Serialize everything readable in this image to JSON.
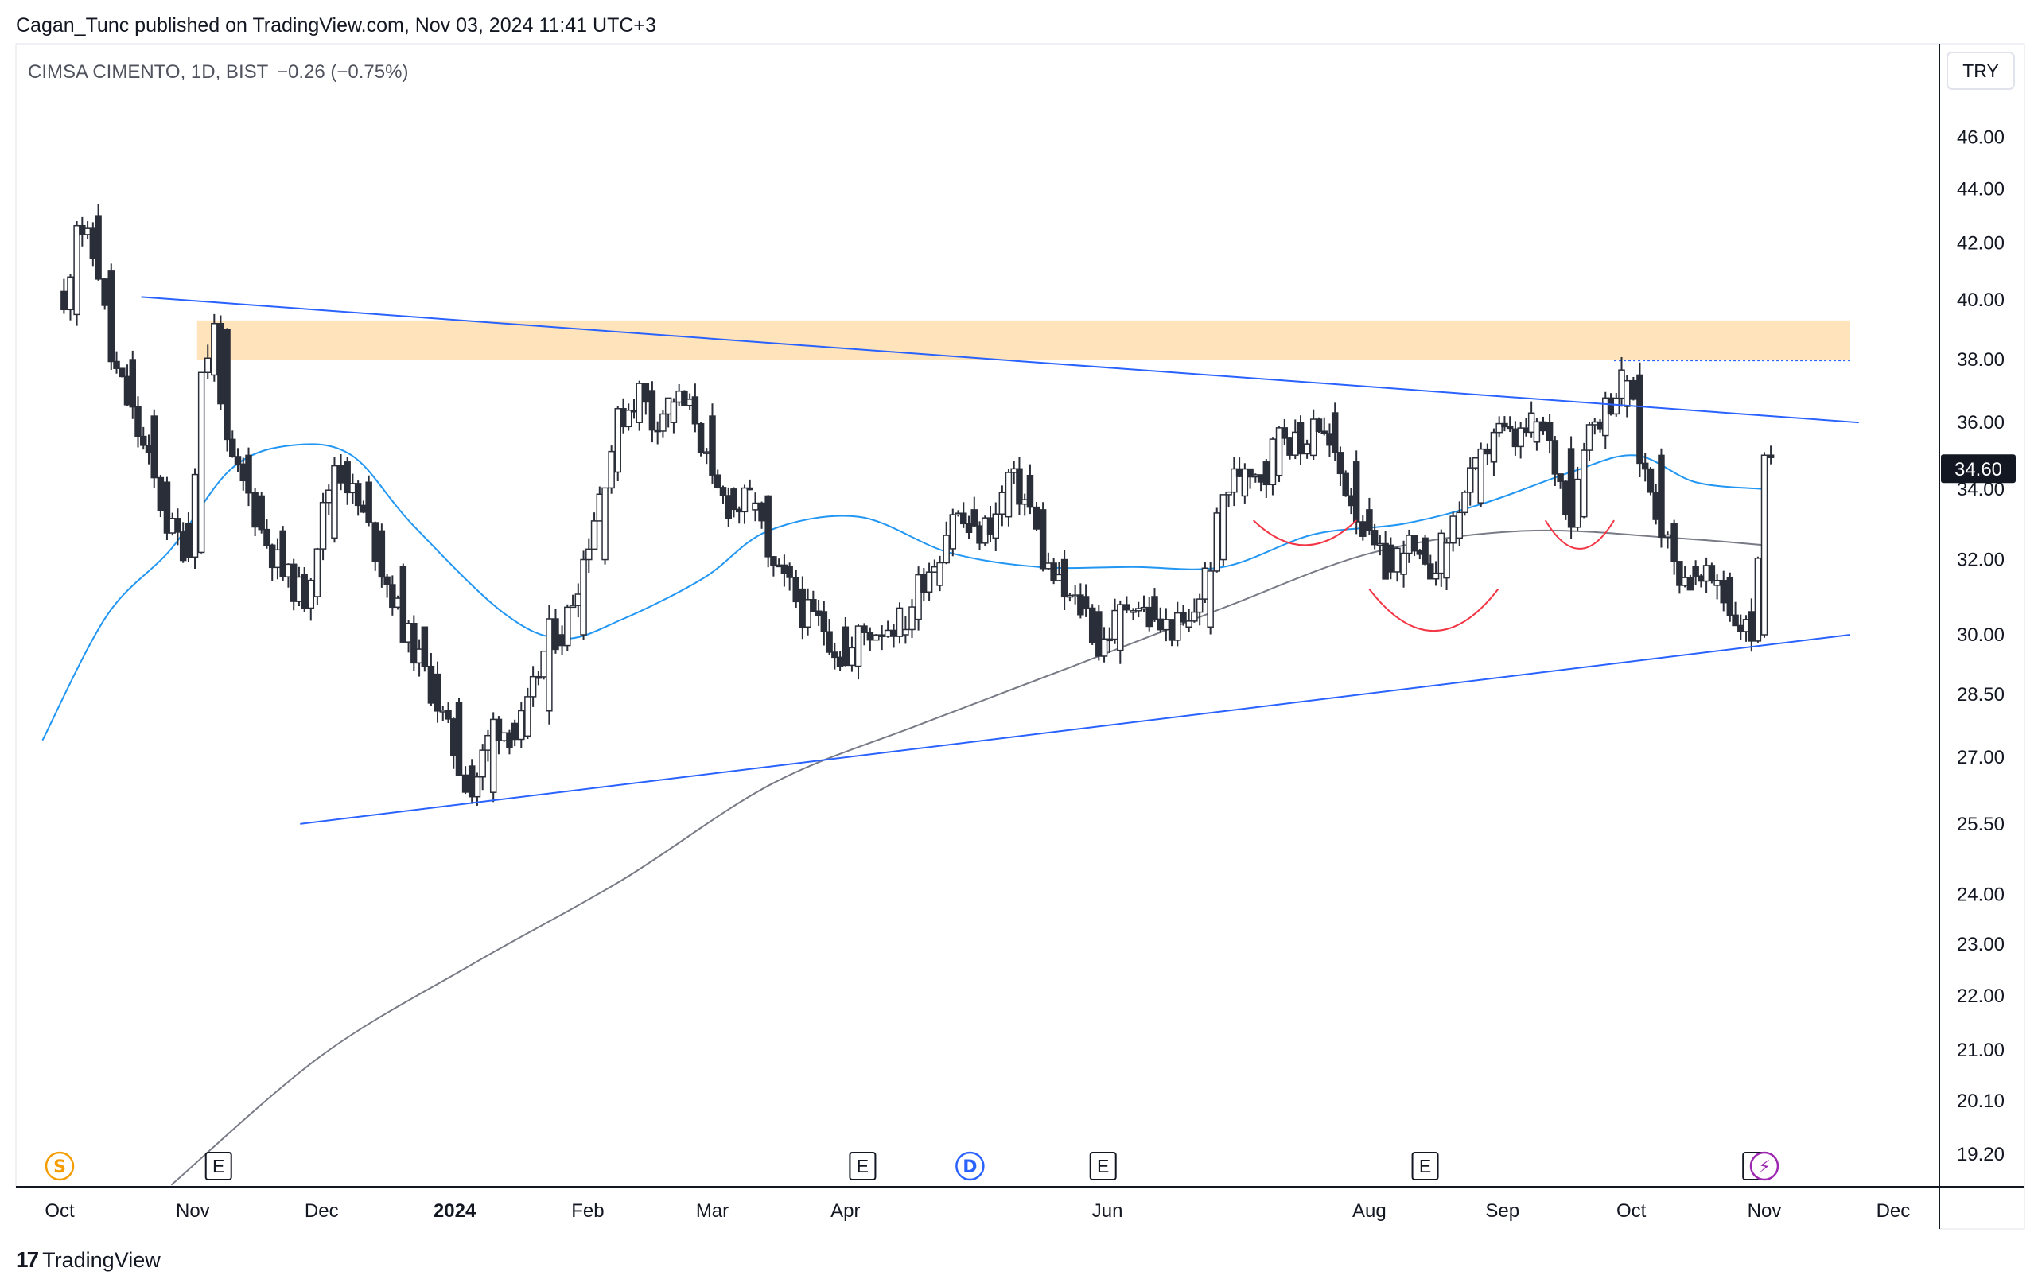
{
  "header": {
    "published": "Cagan_Tunc published on TradingView.com, Nov 03, 2024 11:41 UTC+3",
    "symbol_line": "CIMSA CIMENTO, 1D, BIST",
    "change": "−0.26 (−0.75%)"
  },
  "currency_button": "TRY",
  "last_price_label": "34.60",
  "brand": "TradingView",
  "colors": {
    "candle": "#2a2e39",
    "trendline": "#2962ff",
    "ma_fast": "#2196f3",
    "ma_slow": "#787b86",
    "resistance_zone": "#ffe0b2",
    "arc": "#f23645",
    "event_e": "#131722",
    "event_s": "#f59d00",
    "event_d": "#2962ff",
    "event_flash": "#9c27b0"
  },
  "chart_data": {
    "type": "candlestick",
    "title": "CIMSA CIMENTO, 1D, BIST",
    "scale": "log",
    "ylim": [
      18.7,
      50
    ],
    "y_ticks": [
      "46.00",
      "44.00",
      "42.00",
      "40.00",
      "38.00",
      "36.00",
      "34.00",
      "32.00",
      "30.00",
      "28.50",
      "27.00",
      "25.50",
      "24.00",
      "23.00",
      "22.00",
      "21.00",
      "20.10",
      "19.20"
    ],
    "x_ticks": [
      "Oct",
      "Nov",
      "Dec",
      "2024",
      "Feb",
      "Mar",
      "Apr",
      "Jun",
      "Aug",
      "Sep",
      "Oct",
      "Nov",
      "Dec"
    ],
    "close_series": [
      {
        "date": "2023-10-02",
        "close": 39.5
      },
      {
        "date": "2023-10-05",
        "close": 43.0
      },
      {
        "date": "2023-10-10",
        "close": 41.0
      },
      {
        "date": "2023-10-13",
        "close": 38.0
      },
      {
        "date": "2023-10-18",
        "close": 36.2
      },
      {
        "date": "2023-10-23",
        "close": 34.2
      },
      {
        "date": "2023-10-26",
        "close": 33.0
      },
      {
        "date": "2023-10-31",
        "close": 32.2
      },
      {
        "date": "2023-11-03",
        "close": 37.5
      },
      {
        "date": "2023-11-06",
        "close": 39.0
      },
      {
        "date": "2023-11-09",
        "close": 35.0
      },
      {
        "date": "2023-11-14",
        "close": 33.8
      },
      {
        "date": "2023-11-17",
        "close": 32.8
      },
      {
        "date": "2023-11-22",
        "close": 31.6
      },
      {
        "date": "2023-11-27",
        "close": 31.0
      },
      {
        "date": "2023-11-30",
        "close": 32.6
      },
      {
        "date": "2023-12-04",
        "close": 34.8
      },
      {
        "date": "2023-12-07",
        "close": 34.2
      },
      {
        "date": "2023-12-12",
        "close": 32.8
      },
      {
        "date": "2023-12-15",
        "close": 31.8
      },
      {
        "date": "2023-12-20",
        "close": 30.2
      },
      {
        "date": "2023-12-25",
        "close": 29.0
      },
      {
        "date": "2023-12-28",
        "close": 28.3
      },
      {
        "date": "2024-01-02",
        "close": 26.8
      },
      {
        "date": "2024-01-05",
        "close": 26.2
      },
      {
        "date": "2024-01-10",
        "close": 27.8
      },
      {
        "date": "2024-01-15",
        "close": 27.5
      },
      {
        "date": "2024-01-18",
        "close": 28.1
      },
      {
        "date": "2024-01-23",
        "close": 30.0
      },
      {
        "date": "2024-01-26",
        "close": 30.0
      },
      {
        "date": "2024-01-31",
        "close": 32.0
      },
      {
        "date": "2024-02-05",
        "close": 34.5
      },
      {
        "date": "2024-02-08",
        "close": 36.0
      },
      {
        "date": "2024-02-13",
        "close": 37.0
      },
      {
        "date": "2024-02-16",
        "close": 36.0
      },
      {
        "date": "2024-02-21",
        "close": 36.8
      },
      {
        "date": "2024-02-26",
        "close": 36.2
      },
      {
        "date": "2024-03-01",
        "close": 34.0
      },
      {
        "date": "2024-03-06",
        "close": 33.4
      },
      {
        "date": "2024-03-11",
        "close": 33.8
      },
      {
        "date": "2024-03-14",
        "close": 31.8
      },
      {
        "date": "2024-03-19",
        "close": 31.2
      },
      {
        "date": "2024-03-22",
        "close": 30.6
      },
      {
        "date": "2024-03-27",
        "close": 30.2
      },
      {
        "date": "2024-04-01",
        "close": 29.2
      },
      {
        "date": "2024-04-04",
        "close": 30.0
      },
      {
        "date": "2024-04-15",
        "close": 30.4
      },
      {
        "date": "2024-04-18",
        "close": 31.3
      },
      {
        "date": "2024-04-23",
        "close": 32.3
      },
      {
        "date": "2024-04-26",
        "close": 33.4
      },
      {
        "date": "2024-05-01",
        "close": 32.6
      },
      {
        "date": "2024-05-06",
        "close": 33.2
      },
      {
        "date": "2024-05-09",
        "close": 34.4
      },
      {
        "date": "2024-05-14",
        "close": 33.4
      },
      {
        "date": "2024-05-17",
        "close": 32.0
      },
      {
        "date": "2024-05-22",
        "close": 31.0
      },
      {
        "date": "2024-05-27",
        "close": 30.6
      },
      {
        "date": "2024-05-30",
        "close": 29.6
      },
      {
        "date": "2024-06-04",
        "close": 30.6
      },
      {
        "date": "2024-06-07",
        "close": 31.0
      },
      {
        "date": "2024-06-12",
        "close": 30.2
      },
      {
        "date": "2024-06-20",
        "close": 30.2
      },
      {
        "date": "2024-06-25",
        "close": 32.0
      },
      {
        "date": "2024-06-28",
        "close": 33.8
      },
      {
        "date": "2024-07-03",
        "close": 34.8
      },
      {
        "date": "2024-07-08",
        "close": 34.4
      },
      {
        "date": "2024-07-11",
        "close": 36.0
      },
      {
        "date": "2024-07-16",
        "close": 35.0
      },
      {
        "date": "2024-07-19",
        "close": 36.3
      },
      {
        "date": "2024-07-24",
        "close": 34.8
      },
      {
        "date": "2024-07-29",
        "close": 33.4
      },
      {
        "date": "2024-08-01",
        "close": 32.4
      },
      {
        "date": "2024-08-06",
        "close": 31.6
      },
      {
        "date": "2024-08-09",
        "close": 32.6
      },
      {
        "date": "2024-08-14",
        "close": 31.5
      },
      {
        "date": "2024-08-19",
        "close": 32.6
      },
      {
        "date": "2024-08-22",
        "close": 33.6
      },
      {
        "date": "2024-08-27",
        "close": 34.8
      },
      {
        "date": "2024-08-30",
        "close": 35.8
      },
      {
        "date": "2024-09-04",
        "close": 35.4
      },
      {
        "date": "2024-09-09",
        "close": 36.0
      },
      {
        "date": "2024-09-12",
        "close": 35.2
      },
      {
        "date": "2024-09-17",
        "close": 33.2
      },
      {
        "date": "2024-09-20",
        "close": 35.6
      },
      {
        "date": "2024-09-25",
        "close": 36.5
      },
      {
        "date": "2024-09-30",
        "close": 37.5
      },
      {
        "date": "2024-10-03",
        "close": 35.0
      },
      {
        "date": "2024-10-08",
        "close": 33.0
      },
      {
        "date": "2024-10-11",
        "close": 31.8
      },
      {
        "date": "2024-10-16",
        "close": 31.3
      },
      {
        "date": "2024-10-21",
        "close": 31.5
      },
      {
        "date": "2024-10-24",
        "close": 30.6
      },
      {
        "date": "2024-10-29",
        "close": 30.0
      },
      {
        "date": "2024-11-01",
        "close": 34.6
      }
    ],
    "indicators": [
      {
        "type": "moving_average",
        "color": "#2196f3",
        "values": [
          {
            "date": "2023-09-27",
            "value": 27.4
          },
          {
            "date": "2023-10-12",
            "value": 30.5
          },
          {
            "date": "2023-10-27",
            "value": 32.3
          },
          {
            "date": "2023-11-10",
            "value": 34.6
          },
          {
            "date": "2023-11-24",
            "value": 35.3
          },
          {
            "date": "2023-12-08",
            "value": 35.0
          },
          {
            "date": "2023-12-22",
            "value": 33.0
          },
          {
            "date": "2024-01-12",
            "value": 30.6
          },
          {
            "date": "2024-01-26",
            "value": 29.9
          },
          {
            "date": "2024-02-09",
            "value": 30.4
          },
          {
            "date": "2024-02-28",
            "value": 31.5
          },
          {
            "date": "2024-03-14",
            "value": 32.8
          },
          {
            "date": "2024-04-04",
            "value": 33.2
          },
          {
            "date": "2024-04-25",
            "value": 32.2
          },
          {
            "date": "2024-05-16",
            "value": 31.8
          },
          {
            "date": "2024-06-07",
            "value": 31.8
          },
          {
            "date": "2024-06-28",
            "value": 31.8
          },
          {
            "date": "2024-07-19",
            "value": 32.7
          },
          {
            "date": "2024-08-09",
            "value": 33.0
          },
          {
            "date": "2024-08-28",
            "value": 33.6
          },
          {
            "date": "2024-09-17",
            "value": 34.5
          },
          {
            "date": "2024-10-02",
            "value": 35.0
          },
          {
            "date": "2024-10-16",
            "value": 34.2
          },
          {
            "date": "2024-11-01",
            "value": 34.0
          }
        ]
      },
      {
        "type": "moving_average",
        "color": "#787b86",
        "values": [
          {
            "date": "2023-10-27",
            "value": 18.7
          },
          {
            "date": "2023-12-01",
            "value": 20.9
          },
          {
            "date": "2024-01-05",
            "value": 22.6
          },
          {
            "date": "2024-02-09",
            "value": 24.3
          },
          {
            "date": "2024-03-15",
            "value": 26.4
          },
          {
            "date": "2024-04-19",
            "value": 27.8
          },
          {
            "date": "2024-05-24",
            "value": 29.2
          },
          {
            "date": "2024-06-28",
            "value": 30.7
          },
          {
            "date": "2024-08-02",
            "value": 32.2
          },
          {
            "date": "2024-09-06",
            "value": 32.8
          },
          {
            "date": "2024-10-11",
            "value": 32.6
          },
          {
            "date": "2024-11-01",
            "value": 32.4
          }
        ]
      }
    ],
    "drawings": {
      "resistance_zone": {
        "y_low": 38.0,
        "y_high": 39.3,
        "from": "2023-11-02",
        "to": "2024-11-21"
      },
      "trendline_upper": [
        {
          "date": "2023-10-20",
          "value": 40.1
        },
        {
          "date": "2024-11-23",
          "value": 36.0
        }
      ],
      "trendline_lower": [
        {
          "date": "2023-11-26",
          "value": 25.5
        },
        {
          "date": "2024-11-21",
          "value": 30.0
        }
      ]
    },
    "events": [
      {
        "label": "S",
        "date": "2023-10-01"
      },
      {
        "label": "E",
        "date": "2023-11-07"
      },
      {
        "label": "E",
        "date": "2024-04-05"
      },
      {
        "label": "D",
        "date": "2024-04-30"
      },
      {
        "label": "E",
        "date": "2024-05-31"
      },
      {
        "label": "E",
        "date": "2024-08-14"
      },
      {
        "label": "E",
        "date": "2024-10-30"
      },
      {
        "label": "⚡",
        "date": "2024-11-01"
      }
    ]
  }
}
